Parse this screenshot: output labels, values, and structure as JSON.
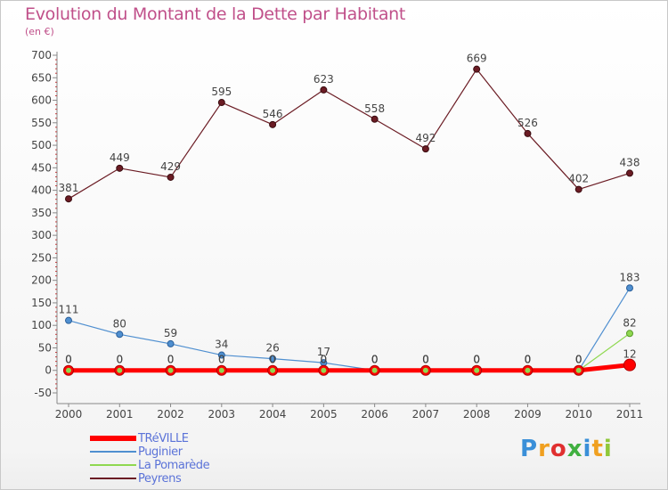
{
  "title": "Evolution du Montant de la Dette par Habitant",
  "subtitle": "(en €)",
  "logo": "Proxiti",
  "chart_data": {
    "type": "line",
    "title": "Evolution du Montant de la Dette par Habitant",
    "subtitle": "(en €)",
    "x": [
      "2000",
      "2001",
      "2002",
      "2003",
      "2004",
      "2005",
      "2006",
      "2007",
      "2008",
      "2009",
      "2010",
      "2011"
    ],
    "ylim": [
      -50,
      700
    ],
    "yticks": [
      -50,
      0,
      50,
      100,
      150,
      200,
      250,
      300,
      350,
      400,
      450,
      500,
      550,
      600,
      650,
      700
    ],
    "grid": false,
    "legend_position": "bottom-left",
    "series": [
      {
        "name": "TRéVILLE",
        "color": "#ff0000",
        "values": [
          0,
          0,
          0,
          0,
          0,
          0,
          0,
          0,
          0,
          0,
          0,
          12
        ],
        "labels": [
          "0",
          "0",
          "0",
          "0",
          "0",
          "0",
          "0",
          "0",
          "0",
          "0",
          "0",
          "12"
        ]
      },
      {
        "name": "Puginier",
        "color": "#4f8fd0",
        "values": [
          111,
          80,
          59,
          34,
          26,
          17,
          0,
          0,
          0,
          0,
          0,
          183
        ],
        "labels": [
          "111",
          "80",
          "59",
          "34",
          "26",
          "17",
          "0",
          "0",
          "0",
          "0",
          "0",
          "183"
        ]
      },
      {
        "name": "La Pomarède",
        "color": "#8fd850",
        "values": [
          0,
          0,
          0,
          0,
          0,
          0,
          0,
          0,
          0,
          0,
          0,
          82
        ],
        "labels": [
          "0",
          "0",
          "0",
          "0",
          "0",
          "0",
          "0",
          "0",
          "0",
          "0",
          "0",
          "82"
        ]
      },
      {
        "name": "Peyrens",
        "color": "#6b1c24",
        "values": [
          381,
          449,
          429,
          595,
          546,
          623,
          558,
          492,
          669,
          526,
          402,
          438
        ],
        "labels": [
          "381",
          "449",
          "429",
          "595",
          "546",
          "623",
          "558",
          "492",
          "669",
          "526",
          "402",
          "438"
        ]
      }
    ]
  }
}
